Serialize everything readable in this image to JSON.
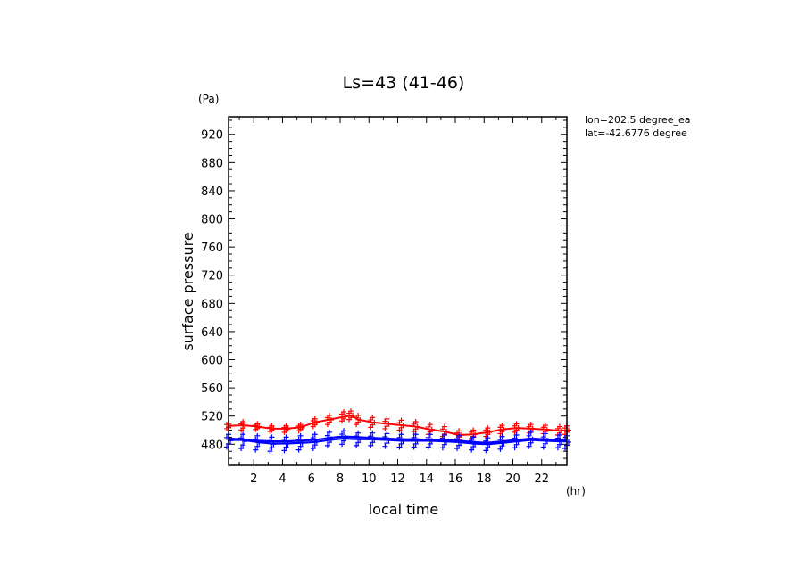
{
  "chart_data": {
    "type": "line",
    "title": "Ls=43 (41-46)",
    "xlabel": "local time",
    "ylabel": "surface pressure",
    "x_unit": "(hr)",
    "y_unit": "(Pa)",
    "xlim": [
      0.25,
      23.75
    ],
    "ylim": [
      450,
      945
    ],
    "x_ticks": [
      2,
      4,
      6,
      8,
      10,
      12,
      14,
      16,
      18,
      20,
      22
    ],
    "x_tick_labels": [
      "2",
      "4",
      "6",
      "8",
      "10",
      "12",
      "14",
      "16",
      "18",
      "20",
      "22"
    ],
    "y_ticks": [
      480,
      520,
      560,
      600,
      640,
      680,
      720,
      760,
      800,
      840,
      880,
      920
    ],
    "y_tick_labels": [
      "480",
      "520",
      "560",
      "600",
      "640",
      "680",
      "720",
      "760",
      "800",
      "840",
      "880",
      "920"
    ],
    "annotations": [
      "lon=202.5 degree_ea",
      "lat=-42.6776 degree"
    ],
    "series": [
      {
        "color": "#ff0000",
        "x": [
          0.25,
          1.25,
          2.25,
          3.25,
          4.25,
          5.25,
          6.25,
          7.25,
          8.25,
          8.75,
          9.25,
          10.25,
          11.25,
          12.25,
          13.25,
          14.25,
          15.25,
          16.25,
          17.25,
          18.25,
          19.25,
          20.25,
          21.25,
          22.25,
          23.25,
          23.75
        ],
        "y": [
          506,
          507,
          505,
          502,
          502,
          504,
          511,
          515,
          519,
          521,
          515,
          511,
          509,
          507,
          505,
          501,
          498,
          493,
          494,
          497,
          501,
          503,
          502,
          501,
          499,
          500
        ],
        "scatter_y": [
          [
            502,
            510
          ],
          [
            500,
            512
          ],
          [
            501,
            509
          ],
          [
            498,
            506
          ],
          [
            497,
            506
          ],
          [
            499,
            508
          ],
          [
            505,
            516
          ],
          [
            508,
            521
          ],
          [
            513,
            526
          ],
          [
            515,
            527
          ],
          [
            508,
            521
          ],
          [
            504,
            518
          ],
          [
            502,
            516
          ],
          [
            500,
            514
          ],
          [
            498,
            512
          ],
          [
            494,
            508
          ],
          [
            491,
            505
          ],
          [
            487,
            499
          ],
          [
            488,
            500
          ],
          [
            491,
            503
          ],
          [
            495,
            507
          ],
          [
            497,
            509
          ],
          [
            496,
            508
          ],
          [
            495,
            507
          ],
          [
            493,
            505
          ],
          [
            494,
            506
          ]
        ]
      },
      {
        "color": "#0000ff",
        "x": [
          0.25,
          1.25,
          2.25,
          3.25,
          4.25,
          5.25,
          6.25,
          7.25,
          8.25,
          9.25,
          10.25,
          11.25,
          12.25,
          13.25,
          14.25,
          15.25,
          16.25,
          17.25,
          18.25,
          19.25,
          20.25,
          21.25,
          22.25,
          23.25,
          23.75
        ],
        "y": [
          486,
          486,
          483,
          481,
          481,
          482,
          483,
          486,
          488,
          487,
          487,
          486,
          485,
          485,
          485,
          484,
          483,
          481,
          480,
          482,
          484,
          486,
          485,
          484,
          484
        ],
        "scatter_y": [
          [
            476,
            494
          ],
          [
            474,
            494
          ],
          [
            472,
            492
          ],
          [
            470,
            490
          ],
          [
            471,
            490
          ],
          [
            472,
            492
          ],
          [
            474,
            494
          ],
          [
            478,
            497
          ],
          [
            480,
            499
          ],
          [
            478,
            496
          ],
          [
            478,
            496
          ],
          [
            477,
            495
          ],
          [
            476,
            494
          ],
          [
            476,
            494
          ],
          [
            476,
            494
          ],
          [
            475,
            493
          ],
          [
            474,
            492
          ],
          [
            472,
            490
          ],
          [
            471,
            489
          ],
          [
            473,
            491
          ],
          [
            475,
            493
          ],
          [
            477,
            497
          ],
          [
            476,
            495
          ],
          [
            475,
            493
          ],
          [
            474,
            492
          ]
        ]
      },
      {
        "color": "#0000ff",
        "x": [
          0.25,
          1.25,
          2.25,
          3.25,
          4.25,
          5.25,
          6.25,
          7.25,
          8.25,
          9.25,
          10.25,
          11.25,
          12.25,
          13.25,
          14.25,
          15.25,
          16.25,
          17.25,
          18.25,
          19.25,
          20.25,
          21.25,
          22.25,
          23.25,
          23.75
        ],
        "y": [
          488,
          487,
          485,
          484,
          484,
          485,
          486,
          489,
          491,
          490,
          489,
          488,
          487,
          487,
          486,
          486,
          485,
          483,
          482,
          484,
          486,
          488,
          487,
          486,
          485
        ],
        "scatter_y": []
      }
    ]
  }
}
